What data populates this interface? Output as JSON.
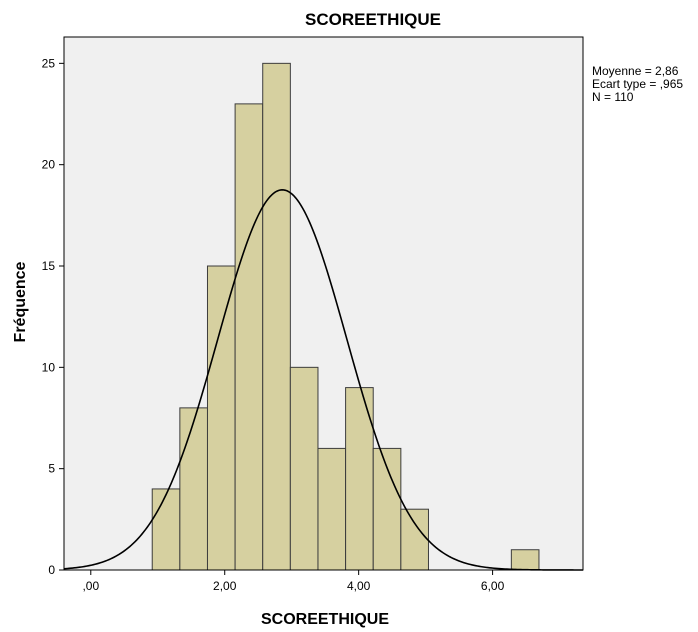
{
  "chart_data": {
    "type": "bar",
    "title": "SCOREETHIQUE",
    "xlabel": "SCOREETHIQUE",
    "ylabel": "Fréquence",
    "xlim": [
      -0.4,
      7.35
    ],
    "ylim": [
      0,
      26.3
    ],
    "x_ticks": [
      0,
      2,
      4,
      6
    ],
    "x_tick_labels": [
      ",00",
      "2,00",
      "4,00",
      "6,00"
    ],
    "y_ticks": [
      0,
      5,
      10,
      15,
      20,
      25
    ],
    "y_tick_labels": [
      "0",
      "5",
      "10",
      "15",
      "20",
      "25"
    ],
    "bin_width": 0.4125,
    "bins": [
      {
        "start": 0.9175,
        "end": 1.33,
        "count": 4
      },
      {
        "start": 1.33,
        "end": 1.7425,
        "count": 8
      },
      {
        "start": 1.7425,
        "end": 2.155,
        "count": 15
      },
      {
        "start": 2.155,
        "end": 2.5675,
        "count": 23
      },
      {
        "start": 2.5675,
        "end": 2.98,
        "count": 25
      },
      {
        "start": 2.98,
        "end": 3.3925,
        "count": 10
      },
      {
        "start": 3.3925,
        "end": 3.805,
        "count": 6
      },
      {
        "start": 3.805,
        "end": 4.2175,
        "count": 9
      },
      {
        "start": 4.2175,
        "end": 4.63,
        "count": 6
      },
      {
        "start": 4.63,
        "end": 5.0425,
        "count": 3
      },
      {
        "start": 6.28,
        "end": 6.6925,
        "count": 1
      }
    ],
    "normal_curve": {
      "mean": 2.86,
      "sd": 0.965,
      "n": 110
    },
    "stats_lines": [
      "Moyenne = 2,86",
      "Ecart type = ,965",
      "N = 110"
    ],
    "grid": false,
    "colors": {
      "bar_fill": "#d6d0a0",
      "bar_stroke": "#3c3c3c",
      "plot_background": "#f0f0f0",
      "curve": "#000000"
    }
  }
}
